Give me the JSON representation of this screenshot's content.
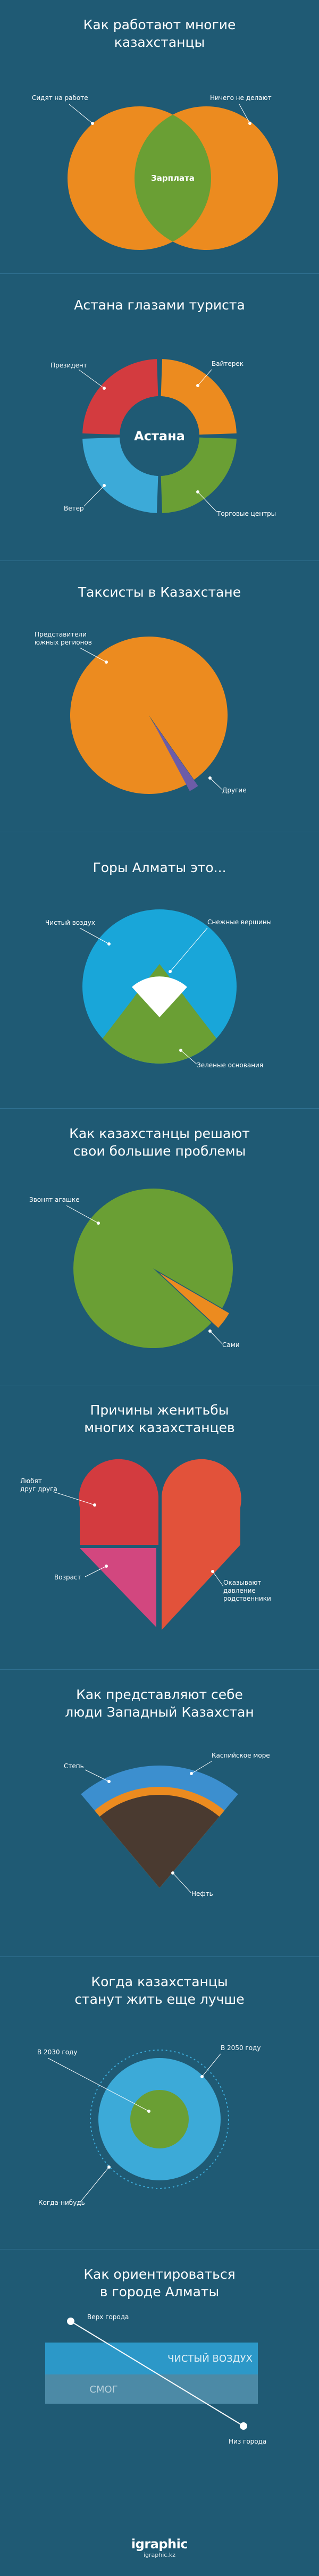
{
  "colors": {
    "background": "#1f5a74",
    "orange": "#ec8b1f",
    "green": "#6a9f34",
    "red": "#d33b3f",
    "blue": "#3caad8",
    "purple": "#6c5ca8",
    "white": "#ffffff",
    "brown": "#4a3a30"
  },
  "s1": {
    "title_l1": "Как работают многие",
    "title_l2": "казахстанцы",
    "left": "Сидят на работе",
    "right": "Ничего не делают",
    "center": "Зарплата"
  },
  "s2": {
    "title": "Астана глазами туриста",
    "center": "Астана",
    "tl": "Президент",
    "tr": "Байтерек",
    "bl": "Ветер",
    "br": "Торговые центры"
  },
  "s3": {
    "title": "Таксисты в Казахстане",
    "main_l1": "Представители",
    "main_l2": "южных регионов",
    "other": "Другие"
  },
  "s4": {
    "title": "Горы Алматы это...",
    "air": "Чистый воздух",
    "peaks": "Снежные вершины",
    "base": "Зеленые основания"
  },
  "s5": {
    "title_l1": "Как казахстанцы решают",
    "title_l2": "свои большие проблемы",
    "call": "Звонят агашке",
    "self": "Сами"
  },
  "s6": {
    "title_l1": "Причины женитьбы",
    "title_l2": "многих казахстанцев",
    "love_l1": "Любят",
    "love_l2": "друг друга",
    "age": "Возраст",
    "pressure_l1": "Оказывают",
    "pressure_l2": "давление",
    "pressure_l3": "родственники"
  },
  "s7": {
    "title_l1": "Как представляют себе",
    "title_l2": "люди Западный Казахстан",
    "steppe": "Степь",
    "sea": "Каспийское море",
    "oil": "Нефть"
  },
  "s8": {
    "title_l1": "Когда казахстанцы",
    "title_l2": "станут жить еще лучше",
    "y2030": "В 2030 году",
    "y2050": "В 2050 году",
    "someday": "Когда-нибудь"
  },
  "s9": {
    "title_l1": "Как ориентироваться",
    "title_l2": "в городе Алматы",
    "top": "Верх города",
    "clean": "ЧИСТЫЙ ВОЗДУХ",
    "smog": "СМОГ",
    "bottom": "Низ города"
  },
  "footer": {
    "logo": "igraphic",
    "site": "igraphic.kz"
  }
}
